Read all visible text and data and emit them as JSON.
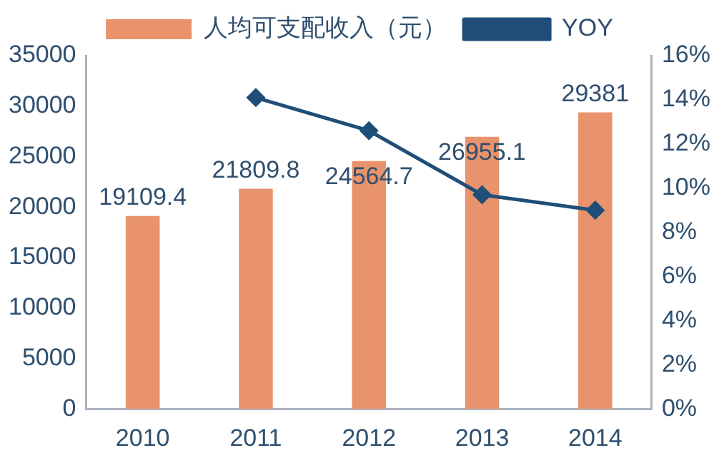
{
  "chart_data": {
    "type": "bar",
    "categories": [
      "2010",
      "2011",
      "2012",
      "2013",
      "2014"
    ],
    "series": [
      {
        "name": "人均可支配收入（元）",
        "color": "#e8936b",
        "values": [
          19109.4,
          21809.8,
          24564.7,
          26955.1,
          29381
        ],
        "value_labels": [
          "19109.4",
          "21809.8",
          "24564.7",
          "26955.1",
          "29381"
        ]
      },
      {
        "name": "YOY",
        "type": "line",
        "axis": "y2",
        "color": "#1f4e79",
        "marker": "diamond",
        "values": [
          null,
          14.1,
          12.6,
          9.7,
          9.0
        ]
      }
    ],
    "ylim": [
      0,
      35000
    ],
    "yticks": [
      0,
      5000,
      10000,
      15000,
      20000,
      25000,
      30000,
      35000
    ],
    "y2lim": [
      0,
      16
    ],
    "y2ticks": [
      {
        "value": 0,
        "label": "0%"
      },
      {
        "value": 2,
        "label": "2%"
      },
      {
        "value": 4,
        "label": "4%"
      },
      {
        "value": 6,
        "label": "6%"
      },
      {
        "value": 8,
        "label": "8%"
      },
      {
        "value": 10,
        "label": "10%"
      },
      {
        "value": 12,
        "label": "12%"
      },
      {
        "value": 14,
        "label": "14%"
      },
      {
        "value": 16,
        "label": "16%"
      }
    ],
    "grid": false,
    "legend": "top"
  }
}
